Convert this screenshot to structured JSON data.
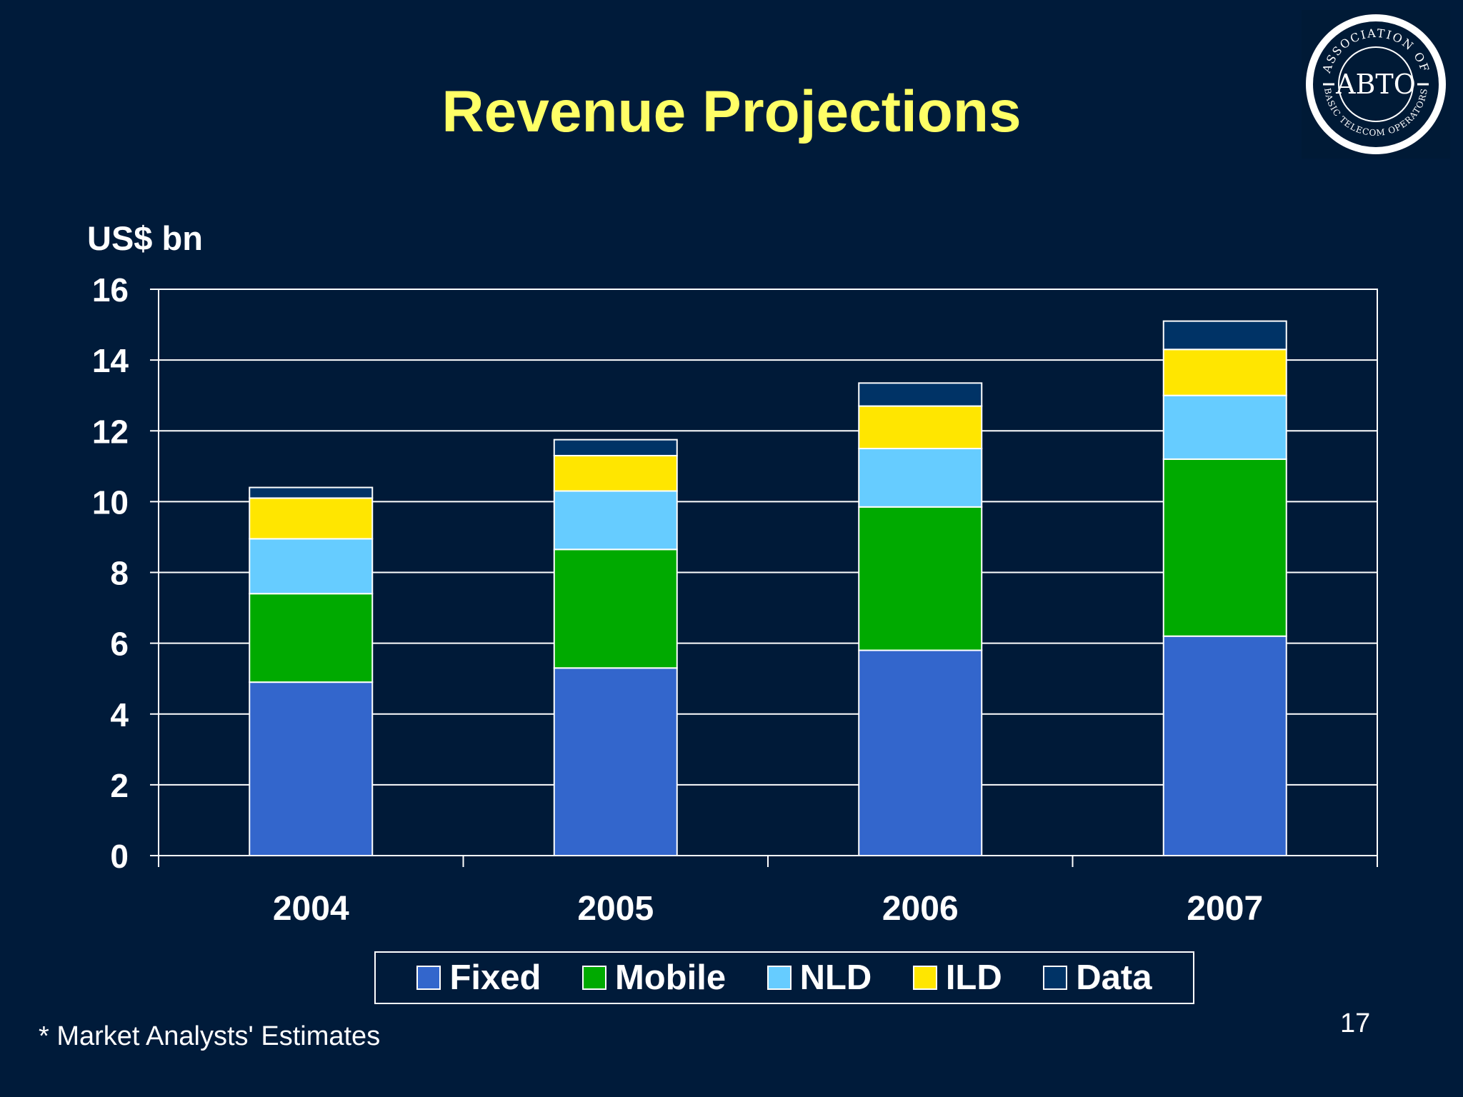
{
  "slide": {
    "title": "Revenue Projections",
    "footnote": "* Market Analysts' Estimates",
    "page_number": "17"
  },
  "logo": {
    "arc_top": "ASSOCIATION OF",
    "center": "ABTO",
    "arc_bottom": "BASIC TELECOM OPERATORS"
  },
  "colors": {
    "background": "#001b3a",
    "title": "#ffff66",
    "Fixed": "#3366cc",
    "Mobile": "#00aa00",
    "NLD": "#66ccff",
    "ILD": "#ffe600",
    "Data": "#003366"
  },
  "chart_data": {
    "type": "bar",
    "stacked": true,
    "ylabel": "US$ bn",
    "ylim": [
      0,
      16
    ],
    "yticks": [
      0,
      2,
      4,
      6,
      8,
      10,
      12,
      14,
      16
    ],
    "grid": true,
    "legend_position": "bottom",
    "categories": [
      "2004",
      "2005",
      "2006",
      "2007"
    ],
    "series": [
      {
        "name": "Fixed",
        "values": [
          4.9,
          5.3,
          5.8,
          6.2
        ]
      },
      {
        "name": "Mobile",
        "values": [
          2.5,
          3.35,
          4.05,
          5.0
        ]
      },
      {
        "name": "NLD",
        "values": [
          1.55,
          1.65,
          1.65,
          1.8
        ]
      },
      {
        "name": "ILD",
        "values": [
          1.15,
          1.0,
          1.2,
          1.3
        ]
      },
      {
        "name": "Data",
        "values": [
          0.3,
          0.45,
          0.65,
          0.8
        ]
      }
    ]
  }
}
